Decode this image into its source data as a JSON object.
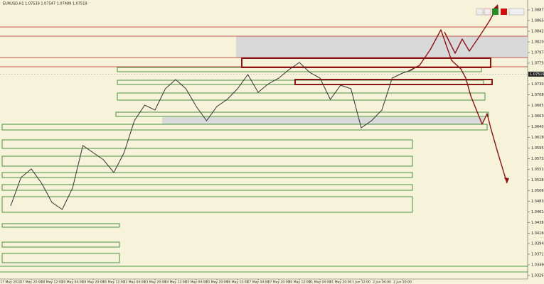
{
  "chart_data": {
    "type": "line",
    "title": "EURUSD,H1 1.07539 1.07547 1.07489 1.07519",
    "categories": [
      "17 May 2022",
      null,
      "17 May 20:00",
      null,
      "18 May 12:00",
      null,
      "19 May 04:00",
      null,
      "19 May 20:00",
      null,
      "20 May 12:00",
      null,
      "23 May 04:00",
      null,
      "23 May 20:00",
      null,
      "24 May 12:00",
      null,
      "25 May 04:00",
      null,
      "25 May 20:00",
      null,
      "26 May 12:00",
      null,
      "27 May 04:00",
      null,
      "27 May 20:00",
      null,
      "30 May 12:00",
      null,
      "31 May 04:00",
      null,
      "31 May 20:00",
      null,
      "1 Jun 12:00",
      null,
      "2 Jun 04:00",
      null,
      "2 Jun 20:00",
      null
    ],
    "series": [
      {
        "name": "EURUSD,H1",
        "color": "#333333",
        "values": [
          1.04735,
          1.05335,
          1.05515,
          1.05215,
          1.0481,
          1.0466,
          1.0511,
          1.0601,
          1.0586,
          1.0571,
          1.0544,
          1.0586,
          1.06535,
          1.06865,
          1.0676,
          1.0721,
          1.07405,
          1.0721,
          1.06835,
          1.06535,
          1.06835,
          1.06985,
          1.0721,
          1.0751,
          1.07135,
          1.07315,
          1.07435,
          1.07615,
          1.07765,
          1.07555,
          1.07435,
          1.06985,
          1.07285,
          1.0721,
          1.06385,
          1.06535,
          1.0676,
          1.07435,
          1.0754,
          1.07615
        ]
      }
    ],
    "current_price": 1.07519,
    "ylim": [
      1.0319,
      1.09085
    ],
    "yticks": [
      1.08875,
      {
        "value": 1.0865,
        "label": "1.08650"
      },
      1.08425,
      {
        "value": 1.082,
        "label": "1.08200"
      },
      1.07975,
      {
        "value": 1.0775,
        "label": "1.07750"
      },
      1.07305,
      {
        "value": 1.0708,
        "label": "1.07080"
      },
      1.06855,
      {
        "value": 1.0663,
        "label": "1.06630"
      },
      1.06405,
      {
        "value": 1.0618,
        "label": "1.06180"
      },
      1.05955,
      1.05735,
      {
        "value": 1.0551,
        "label": "1.05510"
      },
      1.05285,
      {
        "value": 1.0506,
        "label": "1.05060"
      },
      1.04835,
      {
        "value": 1.0461,
        "label": "1.04610"
      },
      1.04385,
      {
        "value": 1.0416,
        "label": "1.04160"
      },
      {
        "value": 1.0394,
        "label": "1.03940"
      },
      1.03715,
      {
        "value": 1.0349,
        "label": "1.03490"
      },
      1.03265
    ]
  }
}
